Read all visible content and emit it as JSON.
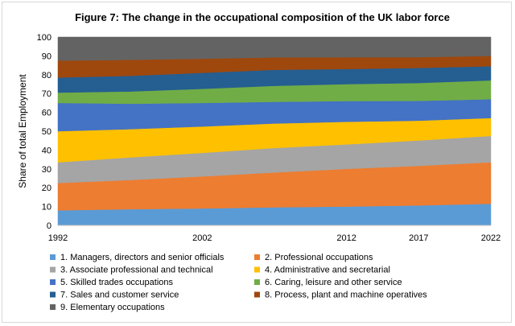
{
  "chart_data": {
    "type": "area",
    "stacked": true,
    "title": "Figure 7: The change in the occupational composition of the UK labor force",
    "xlabel": "",
    "ylabel": "Share of total Employment",
    "ylim": [
      0,
      100
    ],
    "yticks": [
      "0",
      "10",
      "20",
      "30",
      "40",
      "50",
      "60",
      "70",
      "80",
      "90",
      "100"
    ],
    "x": [
      1992,
      1997,
      2002,
      2007,
      2012,
      2017,
      2022
    ],
    "xticks": [
      "1992",
      "2002",
      "2012",
      "2017",
      "2022"
    ],
    "grid": false,
    "legend_position": "bottom",
    "series": [
      {
        "name": "1. Managers, directors and senior officials",
        "color": "#5B9BD5",
        "values": [
          8,
          8.6,
          9,
          9.6,
          10,
          10.6,
          11.5
        ]
      },
      {
        "name": "2. Professional occupations",
        "color": "#ED7D31",
        "values": [
          14.5,
          15.5,
          17,
          18.5,
          20,
          21,
          22
        ]
      },
      {
        "name": "3. Associate professional and technical",
        "color": "#A5A5A5",
        "values": [
          11,
          12,
          12.5,
          13,
          13,
          13.5,
          14
        ]
      },
      {
        "name": "4. Administrative and secretarial",
        "color": "#FFC000",
        "values": [
          16.5,
          15,
          14,
          13,
          12,
          10.5,
          9.5
        ]
      },
      {
        "name": "5. Skilled trades occupations",
        "color": "#4472C4",
        "values": [
          15,
          13.5,
          12.5,
          11.5,
          11,
          10.5,
          10
        ]
      },
      {
        "name": "6. Caring, leisure and other service",
        "color": "#70AD47",
        "values": [
          5.5,
          6.5,
          7.5,
          8.5,
          9,
          9.5,
          10
        ]
      },
      {
        "name": "7. Sales and customer service",
        "color": "#255E91",
        "values": [
          8,
          8.3,
          8.5,
          8.5,
          8,
          8,
          7.5
        ]
      },
      {
        "name": "8. Process, plant and machine operatives",
        "color": "#9E480E",
        "values": [
          9,
          8.5,
          7.5,
          6.6,
          6.3,
          5.7,
          5.5
        ]
      },
      {
        "name": "9. Elementary occupations",
        "color": "#636363",
        "values": [
          12.5,
          12.1,
          11.5,
          10.8,
          10.7,
          10.7,
          10
        ]
      }
    ]
  }
}
